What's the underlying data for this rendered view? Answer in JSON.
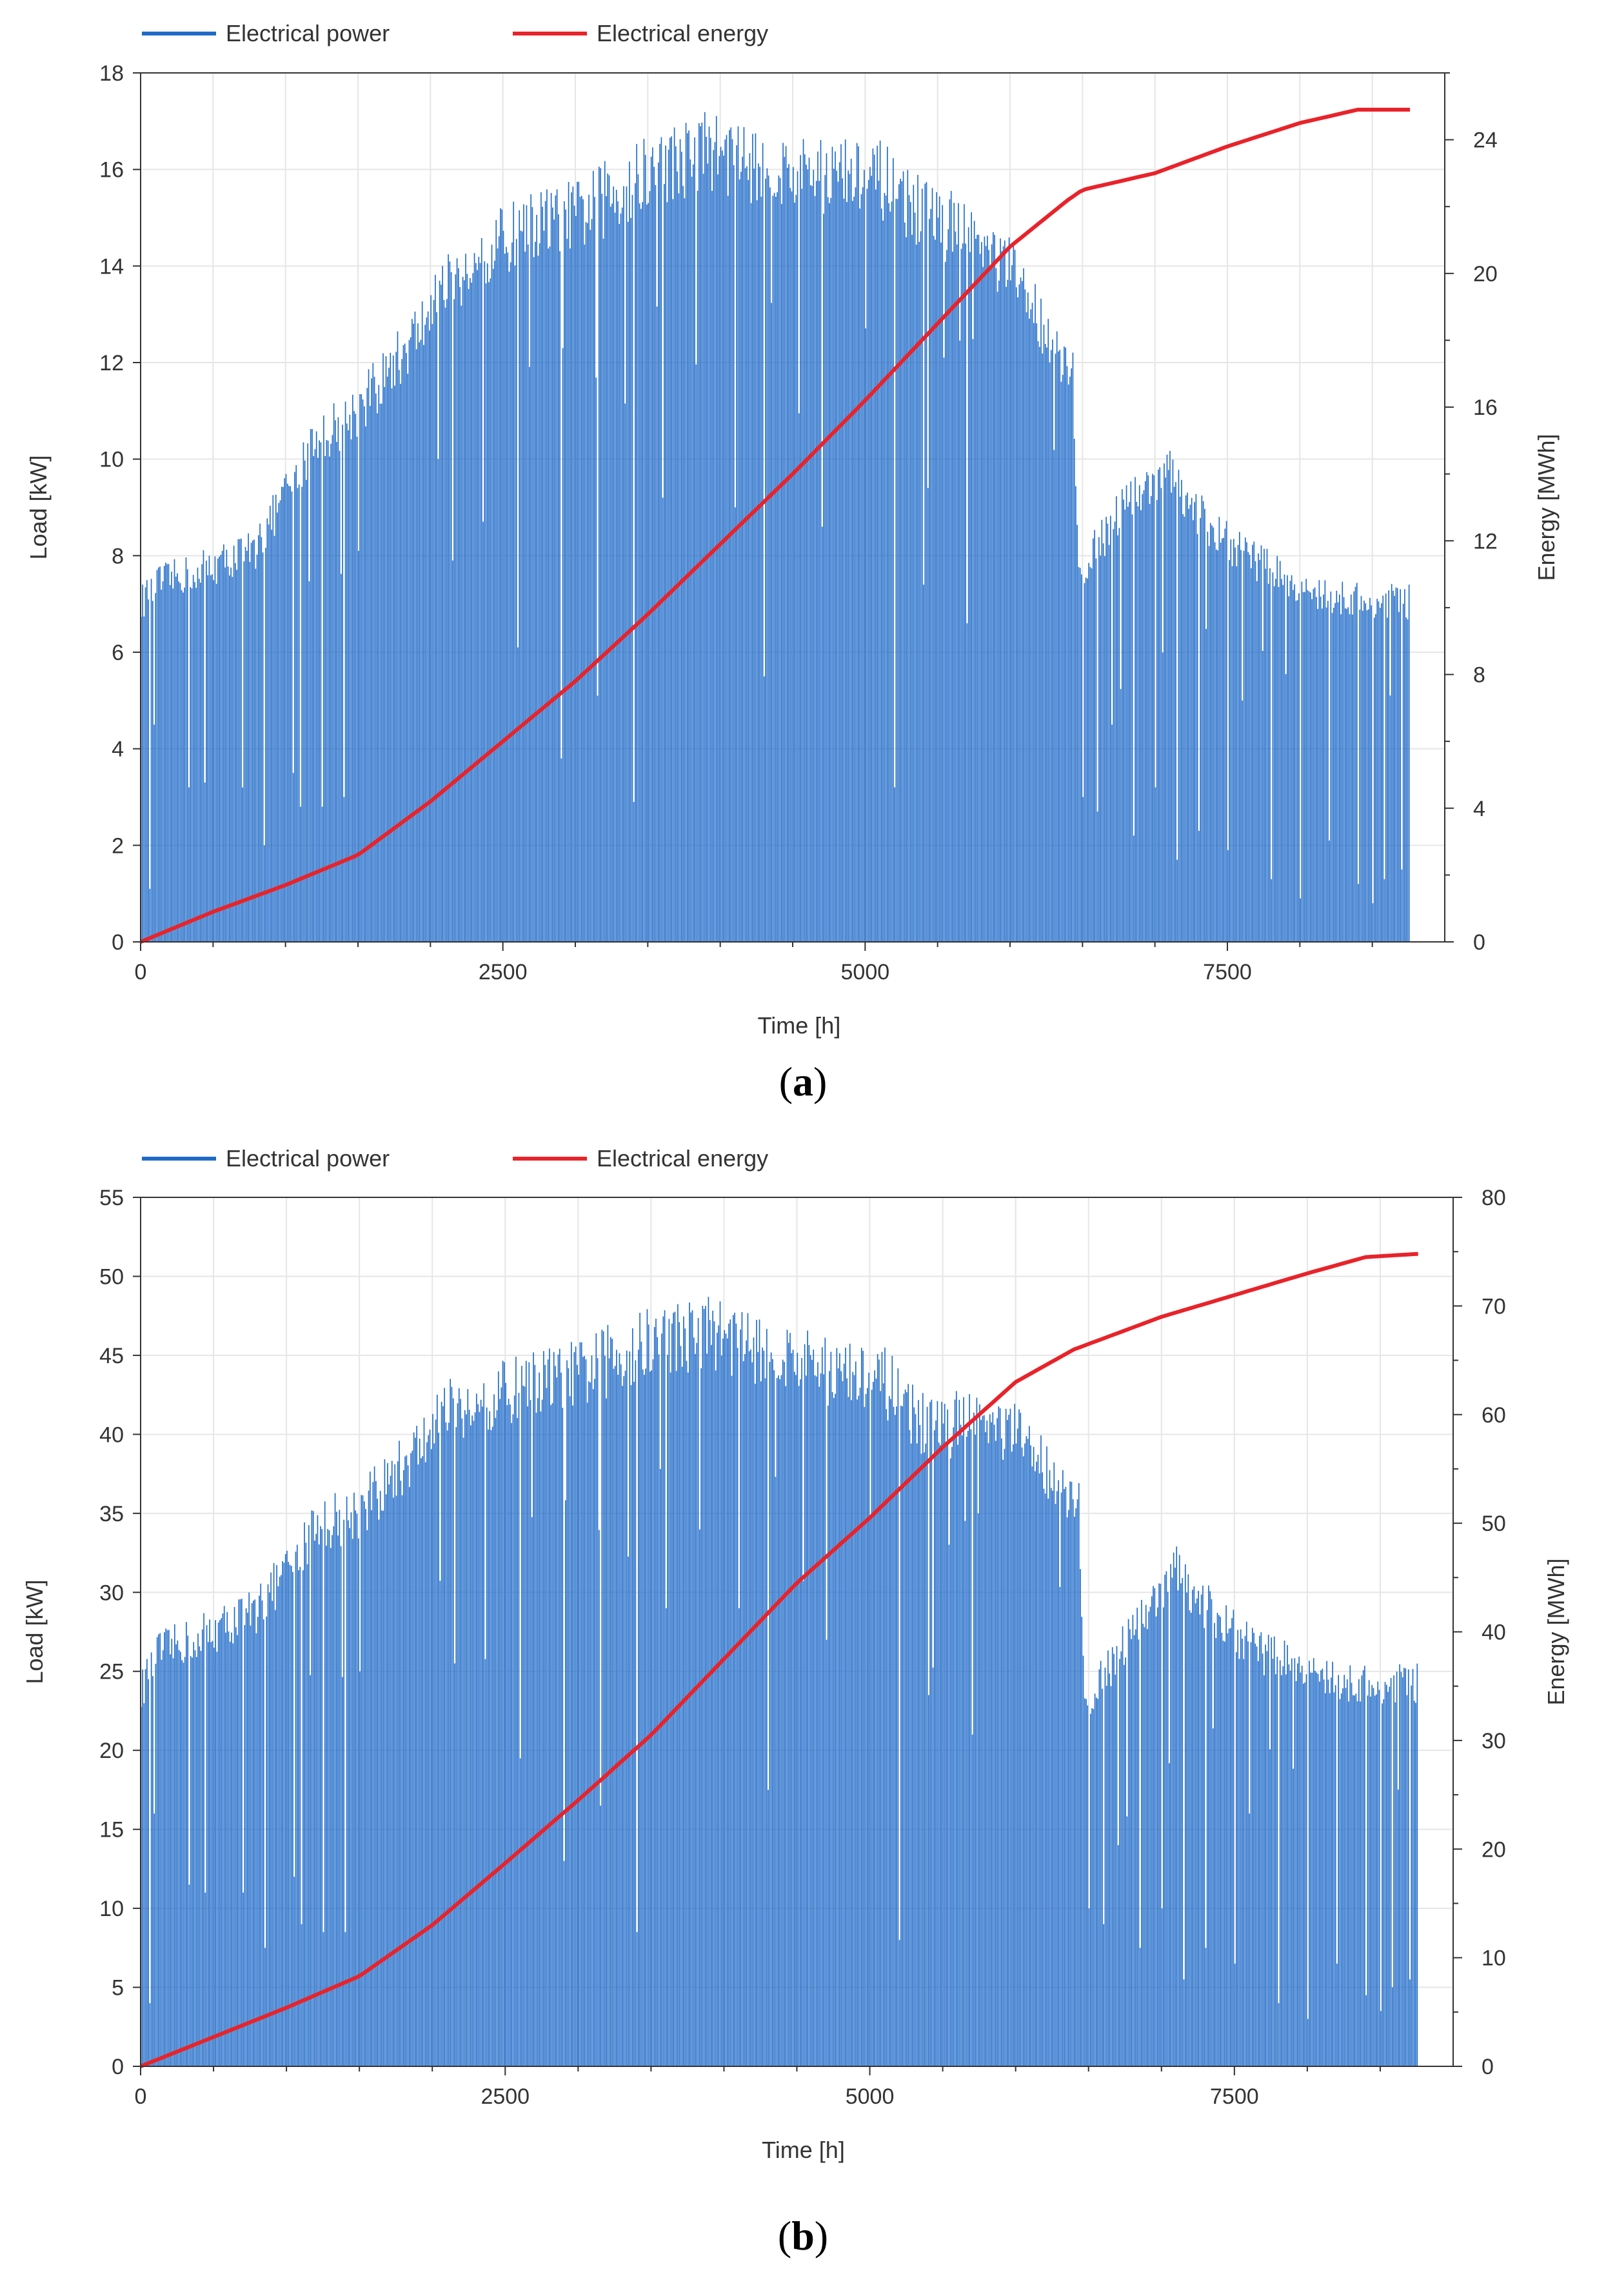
{
  "colors": {
    "power": "#1f6ac8",
    "energy": "#e8232a",
    "grid": "#e6e6e6",
    "axis": "#333333"
  },
  "chart_data": [
    {
      "id": "a",
      "type": "bar+line",
      "caption_letter": "a",
      "legend": [
        "Electrical power",
        "Electrical energy"
      ],
      "xlabel": "Time [h]",
      "ylabel_left": "Load [kW]",
      "ylabel_right": "Energy [MWh]",
      "xlim": [
        0,
        9000
      ],
      "xticks": [
        0,
        2500,
        5000,
        7500
      ],
      "ylim_left": [
        0,
        18
      ],
      "yticks_left": [
        0,
        2,
        4,
        6,
        8,
        10,
        12,
        14,
        16,
        18
      ],
      "ylim_right": [
        0,
        26
      ],
      "yticks_right": [
        0,
        4,
        8,
        12,
        16,
        20,
        24
      ],
      "power_series": {
        "name": "Electrical power",
        "end_hour": 8760,
        "envelope_x": [
          0,
          100,
          500,
          800,
          1000,
          1200,
          1500,
          1800,
          2100,
          2400,
          2700,
          3000,
          3300,
          3600,
          3900,
          4200,
          4500,
          4800,
          5100,
          5400,
          5700,
          6000,
          6300,
          6430,
          6470,
          6800,
          7100,
          7400,
          7700,
          8000,
          8300,
          8760
        ],
        "envelope_y": [
          7.4,
          7.8,
          8.2,
          8.6,
          9.8,
          10.9,
          11.6,
          12.8,
          14.2,
          15.1,
          15.6,
          15.8,
          16.4,
          16.9,
          17.3,
          17.0,
          16.7,
          16.7,
          16.6,
          15.9,
          15.4,
          14.6,
          13.1,
          12.4,
          8.0,
          9.6,
          10.2,
          8.9,
          8.3,
          7.7,
          7.5,
          7.4
        ],
        "dips": [
          [
            60,
            1.1
          ],
          [
            90,
            4.5
          ],
          [
            330,
            3.2
          ],
          [
            440,
            3.3
          ],
          [
            700,
            3.2
          ],
          [
            850,
            2.0
          ],
          [
            1050,
            3.5
          ],
          [
            1100,
            2.8
          ],
          [
            1250,
            2.8
          ],
          [
            1400,
            3.0
          ],
          [
            1500,
            8.1
          ],
          [
            2150,
            7.9
          ],
          [
            2600,
            6.1
          ],
          [
            2900,
            3.8
          ],
          [
            3150,
            5.1
          ],
          [
            3400,
            2.9
          ],
          [
            3600,
            9.2
          ],
          [
            4100,
            9.0
          ],
          [
            4300,
            5.5
          ],
          [
            4700,
            8.6
          ],
          [
            5200,
            3.2
          ],
          [
            5400,
            7.4
          ],
          [
            5700,
            6.6
          ],
          [
            6500,
            3.0
          ],
          [
            6600,
            2.7
          ],
          [
            6700,
            4.5
          ],
          [
            6850,
            2.2
          ],
          [
            7000,
            3.2
          ],
          [
            7150,
            1.7
          ],
          [
            7300,
            2.3
          ],
          [
            7500,
            1.9
          ],
          [
            7600,
            5.0
          ],
          [
            7800,
            1.3
          ],
          [
            8000,
            0.9
          ],
          [
            8200,
            2.1
          ],
          [
            8400,
            1.2
          ],
          [
            8500,
            0.8
          ],
          [
            8580,
            1.3
          ],
          [
            8700,
            1.5
          ]
        ]
      },
      "energy_series": {
        "name": "Electrical energy",
        "x": [
          0,
          500,
          1000,
          1500,
          2000,
          2500,
          3000,
          3500,
          4000,
          4500,
          5000,
          5500,
          6000,
          6400,
          6500,
          7000,
          7500,
          8000,
          8400,
          8760
        ],
        "y": [
          0,
          0.9,
          1.7,
          2.6,
          4.2,
          6.0,
          7.8,
          9.8,
          11.9,
          14.0,
          16.2,
          18.5,
          20.8,
          22.2,
          22.5,
          23.0,
          23.8,
          24.5,
          24.9,
          24.9
        ]
      }
    },
    {
      "id": "b",
      "type": "bar+line",
      "caption_letter": "b",
      "legend": [
        "Electrical power",
        "Electrical energy"
      ],
      "xlabel": "Time [h]",
      "ylabel_left": "Load [kW]",
      "ylabel_right": "Energy [MWh]",
      "xlim": [
        0,
        9000
      ],
      "xticks": [
        0,
        2500,
        5000,
        7500
      ],
      "ylim_left": [
        0,
        55
      ],
      "yticks_left": [
        0,
        5,
        10,
        15,
        20,
        25,
        30,
        35,
        40,
        45,
        50,
        55
      ],
      "ylim_right": [
        0,
        80
      ],
      "yticks_right": [
        0,
        10,
        20,
        30,
        40,
        50,
        60,
        70,
        80
      ],
      "power_series": {
        "name": "Electrical power",
        "end_hour": 8760,
        "envelope_x": [
          0,
          100,
          500,
          800,
          1000,
          1200,
          1500,
          1800,
          2100,
          2400,
          2700,
          3000,
          3300,
          3600,
          3900,
          4200,
          4500,
          4800,
          5100,
          5400,
          5700,
          6000,
          6300,
          6430,
          6470,
          6800,
          7100,
          7400,
          7700,
          8000,
          8300,
          8760
        ],
        "envelope_y": [
          25.0,
          27.5,
          29.0,
          30.5,
          33.0,
          36.0,
          37.0,
          40.0,
          43.5,
          44.5,
          45.5,
          46.0,
          47.5,
          48.5,
          49.0,
          48.0,
          47.0,
          46.0,
          45.5,
          42.5,
          43.0,
          42.0,
          39.0,
          37.5,
          24.0,
          29.0,
          33.0,
          29.5,
          27.5,
          26.5,
          25.5,
          25.5
        ],
        "dips": [
          [
            60,
            4.0
          ],
          [
            90,
            16.0
          ],
          [
            330,
            11.5
          ],
          [
            440,
            11.0
          ],
          [
            700,
            11.0
          ],
          [
            850,
            7.5
          ],
          [
            1050,
            12.0
          ],
          [
            1100,
            9.0
          ],
          [
            1250,
            8.5
          ],
          [
            1400,
            8.5
          ],
          [
            1500,
            25.0
          ],
          [
            2150,
            25.5
          ],
          [
            2600,
            19.5
          ],
          [
            2900,
            13.0
          ],
          [
            3150,
            16.5
          ],
          [
            3400,
            8.5
          ],
          [
            3600,
            29.0
          ],
          [
            4100,
            29.0
          ],
          [
            4300,
            17.5
          ],
          [
            4700,
            27.0
          ],
          [
            5200,
            8.0
          ],
          [
            5400,
            23.5
          ],
          [
            5700,
            21.0
          ],
          [
            6500,
            10.0
          ],
          [
            6600,
            9.0
          ],
          [
            6700,
            14.0
          ],
          [
            6850,
            7.5
          ],
          [
            7000,
            10.0
          ],
          [
            7150,
            5.5
          ],
          [
            7300,
            7.5
          ],
          [
            7500,
            6.5
          ],
          [
            7600,
            16.0
          ],
          [
            7800,
            4.0
          ],
          [
            8000,
            3.0
          ],
          [
            8200,
            6.5
          ],
          [
            8400,
            4.5
          ],
          [
            8500,
            3.5
          ],
          [
            8580,
            5.0
          ],
          [
            8700,
            5.5
          ]
        ]
      },
      "energy_series": {
        "name": "Electrical energy",
        "x": [
          0,
          500,
          1000,
          1500,
          2000,
          2500,
          3000,
          3500,
          4000,
          4500,
          5000,
          5500,
          6000,
          6400,
          6500,
          7000,
          7500,
          8000,
          8400,
          8760
        ],
        "y": [
          0,
          2.7,
          5.4,
          8.3,
          13.0,
          18.7,
          24.5,
          30.5,
          37.5,
          44.5,
          50.5,
          57.0,
          63.0,
          66.0,
          66.5,
          69.0,
          71.0,
          73.0,
          74.5,
          74.8
        ]
      }
    }
  ]
}
